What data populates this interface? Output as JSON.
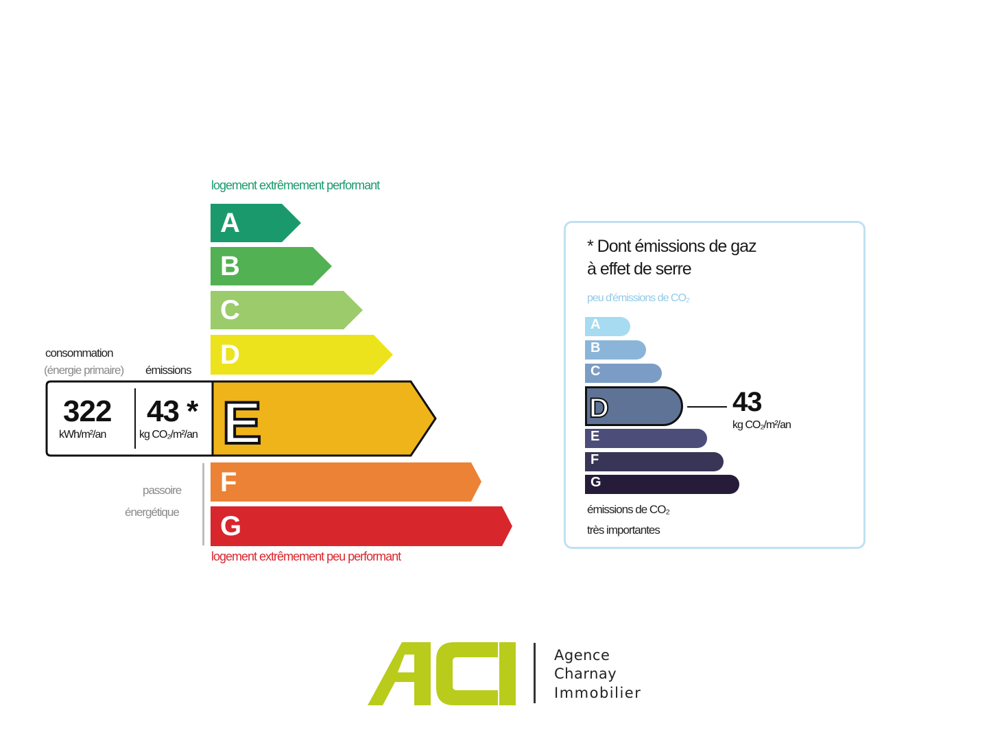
{
  "dpe": {
    "top_label": "logement extrêmement performant",
    "bottom_label": "logement extrêmement peu performant",
    "classes": [
      {
        "letter": "A",
        "color": "#1a9a6c"
      },
      {
        "letter": "B",
        "color": "#52b153"
      },
      {
        "letter": "C",
        "color": "#9bcb6b"
      },
      {
        "letter": "D",
        "color": "#ede31c"
      },
      {
        "letter": "E",
        "color": "#f0b41b"
      },
      {
        "letter": "F",
        "color": "#ec8235"
      },
      {
        "letter": "G",
        "color": "#d8262d"
      }
    ],
    "current_class": "E",
    "consumption_label": "consommation",
    "consumption_sublabel": "(énergie primaire)",
    "emissions_label": "émissions",
    "consumption_value": "322",
    "consumption_unit": "kWh/m²/an",
    "emissions_value": "43 *",
    "emissions_unit": "kg CO₂/m²/an",
    "passoire_line1": "passoire",
    "passoire_line2": "énergétique"
  },
  "ges": {
    "title_line1": "* Dont émissions de gaz",
    "title_line2": "à effet de serre",
    "top_label": "peu d'émissions de CO₂",
    "classes": [
      {
        "letter": "A",
        "color": "#a6dbf1"
      },
      {
        "letter": "B",
        "color": "#8ab5d8"
      },
      {
        "letter": "C",
        "color": "#7b9cc4"
      },
      {
        "letter": "D",
        "color": "#5f7397"
      },
      {
        "letter": "E",
        "color": "#4c4d78"
      },
      {
        "letter": "F",
        "color": "#393556"
      },
      {
        "letter": "G",
        "color": "#261c3a"
      }
    ],
    "current_class": "D",
    "value": "43",
    "unit": "kg CO₂/m²/an",
    "bottom_label_line1": "émissions de CO₂",
    "bottom_label_line2": "très importantes"
  },
  "logo": {
    "mark": "ACI",
    "mark_color": "#b9cc1b",
    "line1": "Agence",
    "line2": "Charnay",
    "line3": "Immobilier"
  }
}
